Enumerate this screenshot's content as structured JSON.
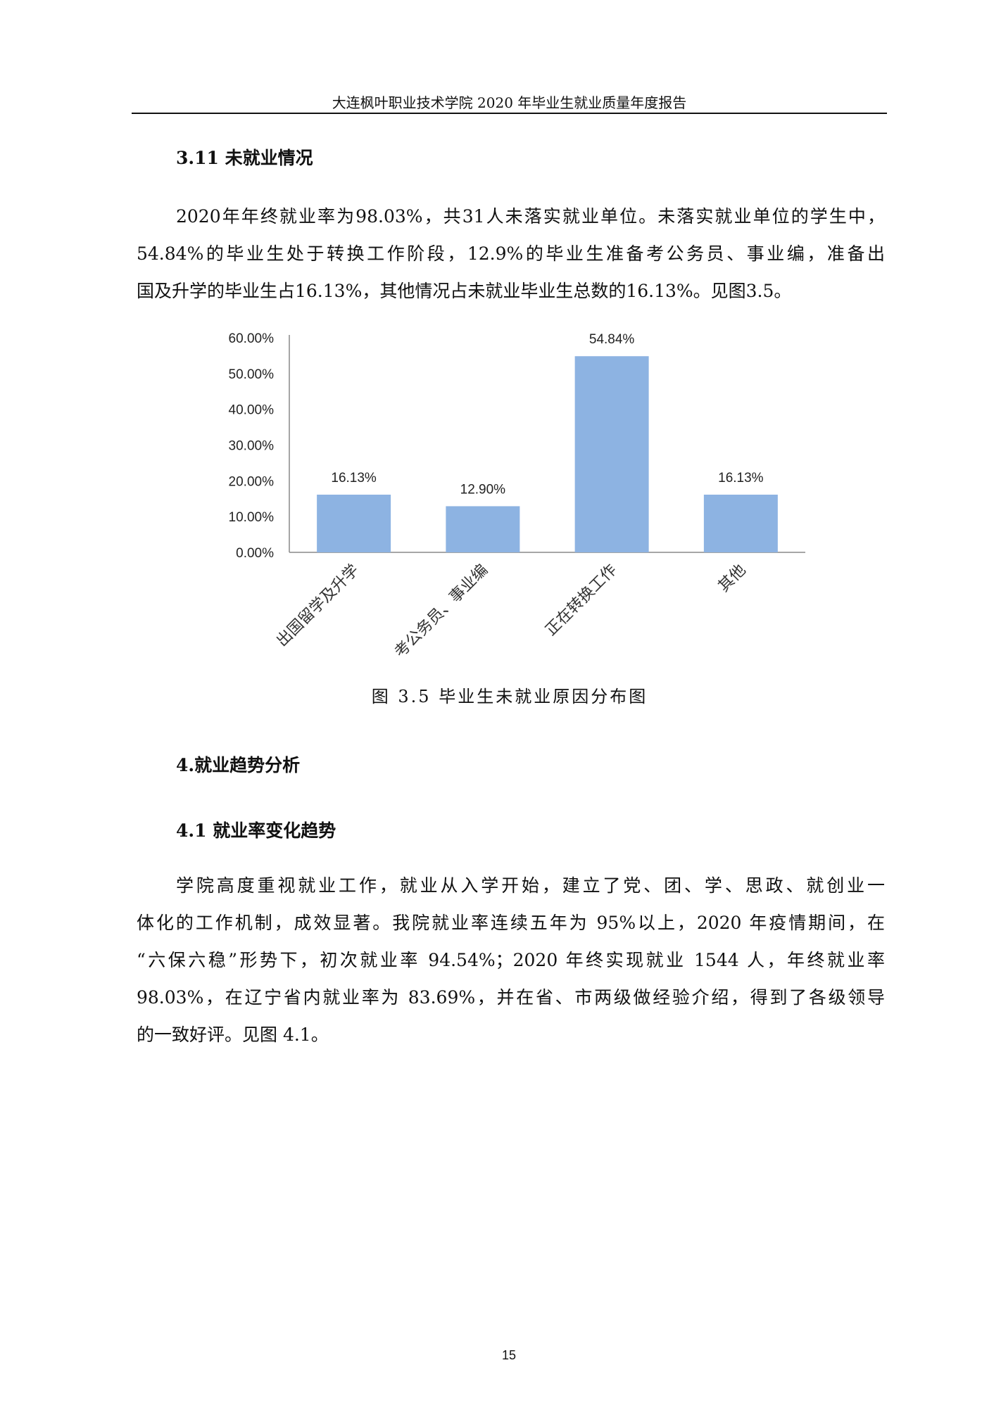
{
  "header": {
    "title": "大连枫叶职业技术学院 2020 年毕业生就业质量年度报告"
  },
  "section_311": {
    "heading": "3.11 未就业情况",
    "lines": [
      "2020年年终就业率为98.03%，共31人未落实就业单位。未落实就业单位的学生中，",
      "54.84%的毕业生处于转换工作阶段，12.9%的毕业生准备考公务员、事业编，准备出",
      "国及升学的毕业生占16.13%，其他情况占未就业毕业生总数的16.13%。见图3.5。"
    ]
  },
  "chart_data": {
    "type": "bar",
    "title": "",
    "categories": [
      "出国留学及升学",
      "考公务员、事业编",
      "正在转换工作",
      "其他"
    ],
    "values": [
      16.13,
      12.9,
      54.84,
      16.13
    ],
    "data_labels": [
      "16.13%",
      "12.90%",
      "54.84%",
      "16.13%"
    ],
    "ylim": [
      0,
      60
    ],
    "yticks": [
      "0.00%",
      "10.00%",
      "20.00%",
      "30.00%",
      "40.00%",
      "50.00%",
      "60.00%"
    ],
    "grid": false,
    "bar_color": "#8DB3E2",
    "xlabel": "",
    "ylabel": ""
  },
  "figure_caption": "图 3.5  毕业生未就业原因分布图",
  "section_4": {
    "heading": "4.就业趋势分析"
  },
  "section_41": {
    "heading": "4.1 就业率变化趋势",
    "lines": [
      "学院高度重视就业工作，就业从入学开始，建立了党、团、学、思政、就创业一",
      "体化的工作机制，成效显著。我院就业率连续五年为 95%以上，2020 年疫情期间，在",
      "“六保六稳”形势下，初次就业率 94.54%；2020 年终实现就业 1544 人，年终就业率",
      "98.03%，在辽宁省内就业率为 83.69%，并在省、市两级做经验介绍，得到了各级领导",
      "的一致好评。见图 4.1。"
    ]
  },
  "page_number": "15"
}
